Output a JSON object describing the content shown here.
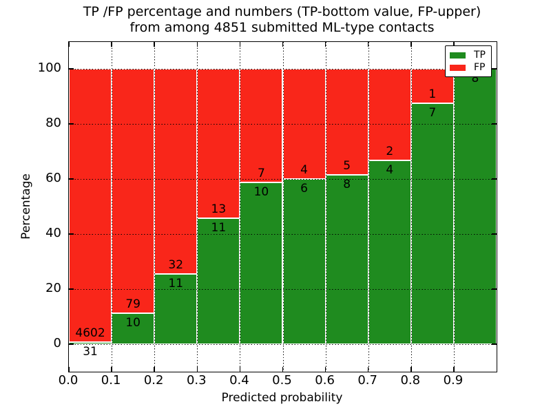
{
  "title": {
    "line1": "TP /FP percentage and numbers (TP-bottom value, FP-upper)",
    "line2": "from among 4851 submitted ML-type contacts"
  },
  "chart_data": {
    "type": "bar",
    "stacked": true,
    "normalized": "each bar totals 100%",
    "title": "TP /FP percentage and numbers (TP-bottom value, FP-upper) from among 4851 submitted ML-type contacts",
    "xlabel": "Predicted probability",
    "ylabel": "Percentage",
    "total_contacts": 4851,
    "categories": [
      "0.0-0.1",
      "0.1-0.2",
      "0.2-0.3",
      "0.3-0.4",
      "0.4-0.5",
      "0.5-0.6",
      "0.6-0.7",
      "0.7-0.8",
      "0.8-0.9",
      "0.9-1.0"
    ],
    "series": [
      {
        "name": "TP",
        "color": "#1f8b1f",
        "counts": [
          31,
          10,
          11,
          11,
          10,
          6,
          8,
          4,
          7,
          8
        ]
      },
      {
        "name": "FP",
        "color": "#f9261a",
        "counts": [
          4602,
          79,
          32,
          13,
          7,
          4,
          5,
          2,
          1,
          0
        ]
      }
    ],
    "x_tick_labels": [
      "0.0",
      "0.1",
      "0.2",
      "0.3",
      "0.4",
      "0.5",
      "0.6",
      "0.7",
      "0.8",
      "0.9"
    ],
    "y_tick_values": [
      0,
      20,
      40,
      60,
      80,
      100
    ],
    "xlim": [
      0.0,
      1.0
    ],
    "ylim": [
      -10,
      110
    ],
    "grid": "dotted black, drawn above bars",
    "bar_edge_color": "#ffffff",
    "legend": {
      "position": "upper right",
      "entries": [
        {
          "label": "TP",
          "color": "#1f8b1f"
        },
        {
          "label": "FP",
          "color": "#f9261a"
        }
      ]
    }
  }
}
